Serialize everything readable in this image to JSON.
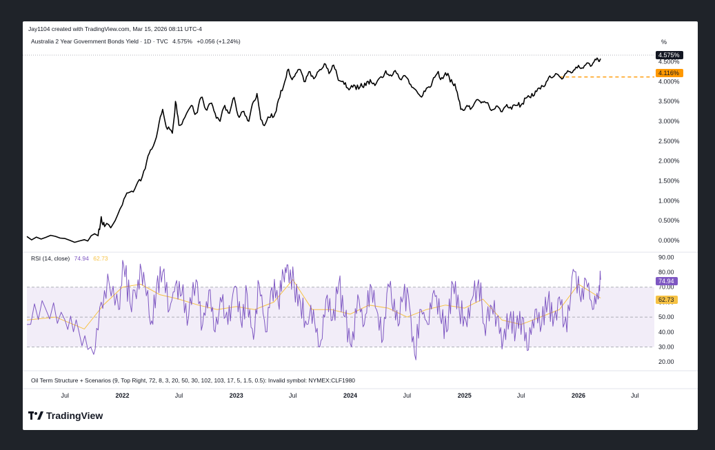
{
  "header": {
    "created_by": "Jay1104 created with TradingView.com, Mar 15, 2026 08:11 UTC-4",
    "symbol_line": "Australia 2 Year Government Bonds Yield · 1D · TVC",
    "last_value": "4.575%",
    "change": "+0.056 (+1.24%)",
    "unit_label": "%"
  },
  "price_badges": {
    "last": "4.575%",
    "reference": "4.116%"
  },
  "rsi_header": {
    "label": "RSI (14, close)",
    "rsi_value": "74.94",
    "ma_value": "62.73"
  },
  "rsi_badges": {
    "rsi": "74.94",
    "ma": "62.73"
  },
  "indicator_note": "Oil Term Structure + Scenarios (9, Top Right, 72, 8, 3, 20, 50, 30, 102, 103, 17, 5, 1.5, 0.5): Invalid symbol: NYMEX:CLF1980",
  "branding": {
    "logo_text": "TradingView"
  },
  "colors": {
    "price_line": "#000000",
    "rsi_line": "#7e57c2",
    "rsi_ma": "#f6c244",
    "ref_line": "#ff9800",
    "badge_dark": "#131722",
    "badge_orange": "#ff9800",
    "rsi_band": "#ede7f6"
  },
  "chart_data": [
    {
      "type": "line",
      "title": "Australia 2 Year Government Bonds Yield",
      "ylabel": "%",
      "ylim": [
        0,
        4.7
      ],
      "y_ticks": [
        "0.000%",
        "0.500%",
        "1.000%",
        "1.500%",
        "2.000%",
        "2.500%",
        "3.000%",
        "3.500%",
        "4.000%",
        "4.500%"
      ],
      "x_ticks": [
        "Jul",
        "2022",
        "Jul",
        "2023",
        "Jul",
        "2024",
        "Jul",
        "2025",
        "Jul",
        "2026",
        "Jul"
      ],
      "reference_line": 4.116,
      "series": [
        {
          "x": [
            "2021-03-01",
            "2021-05-01",
            "2021-07-01",
            "2021-09-01",
            "2021-10-15",
            "2021-10-25",
            "2021-11-05",
            "2021-12-01",
            "2022-01-01",
            "2022-01-20",
            "2022-02-10",
            "2022-03-01",
            "2022-03-20",
            "2022-04-05",
            "2022-04-25",
            "2022-05-10",
            "2022-05-25",
            "2022-06-10",
            "2022-06-20",
            "2022-07-01",
            "2022-07-20",
            "2022-08-10",
            "2022-08-25",
            "2022-09-10",
            "2022-09-25",
            "2022-10-10",
            "2022-10-25",
            "2022-11-10",
            "2022-11-25",
            "2022-12-10",
            "2022-12-25",
            "2023-01-10",
            "2023-01-25",
            "2023-02-10",
            "2023-02-25",
            "2023-03-08",
            "2023-03-20",
            "2023-04-05",
            "2023-04-20",
            "2023-05-05",
            "2023-05-20",
            "2023-06-05",
            "2023-06-15",
            "2023-06-25",
            "2023-07-10",
            "2023-07-25",
            "2023-08-10",
            "2023-08-25",
            "2023-09-10",
            "2023-09-25",
            "2023-10-10",
            "2023-10-25",
            "2023-11-05",
            "2023-11-20",
            "2023-12-05",
            "2023-12-20",
            "2024-01-05",
            "2024-01-20",
            "2024-02-05",
            "2024-02-20",
            "2024-03-05",
            "2024-03-20",
            "2024-04-05",
            "2024-04-20",
            "2024-05-05",
            "2024-05-20",
            "2024-06-05",
            "2024-06-20",
            "2024-07-05",
            "2024-07-20",
            "2024-08-05",
            "2024-08-20",
            "2024-09-05",
            "2024-09-20",
            "2024-10-05",
            "2024-10-20",
            "2024-11-05",
            "2024-11-20",
            "2024-12-05",
            "2024-12-20",
            "2025-01-05",
            "2025-01-20",
            "2025-02-05",
            "2025-02-20",
            "2025-03-05",
            "2025-03-20",
            "2025-04-05",
            "2025-04-20",
            "2025-05-05",
            "2025-05-20",
            "2025-06-05",
            "2025-06-20",
            "2025-07-05",
            "2025-07-20",
            "2025-08-05",
            "2025-08-20",
            "2025-09-05",
            "2025-09-20",
            "2025-10-05",
            "2025-10-20",
            "2025-11-05",
            "2025-11-20",
            "2025-12-05",
            "2025-12-20",
            "2026-01-05",
            "2026-01-20",
            "2026-02-05",
            "2026-02-20",
            "2026-03-05",
            "2026-03-13"
          ],
          "values": [
            0.1,
            0.08,
            0.05,
            0.02,
            0.12,
            0.6,
            0.35,
            0.4,
            0.9,
            1.2,
            1.3,
            1.5,
            2.0,
            2.3,
            2.8,
            3.3,
            2.8,
            2.7,
            3.5,
            2.9,
            3.1,
            3.4,
            3.2,
            3.6,
            3.3,
            3.45,
            3.2,
            3.0,
            3.4,
            3.2,
            3.6,
            3.1,
            3.25,
            3.0,
            3.5,
            3.7,
            3.05,
            2.95,
            3.1,
            3.2,
            3.6,
            4.0,
            4.3,
            4.1,
            4.2,
            4.3,
            4.0,
            4.25,
            4.1,
            4.3,
            4.45,
            4.2,
            4.4,
            4.15,
            4.0,
            3.85,
            3.9,
            3.8,
            3.95,
            3.9,
            4.05,
            3.9,
            4.1,
            4.2,
            4.15,
            4.25,
            4.1,
            4.15,
            4.05,
            3.85,
            3.7,
            3.65,
            3.85,
            4.0,
            4.2,
            4.1,
            4.15,
            4.05,
            3.8,
            3.3,
            3.35,
            3.3,
            3.5,
            3.5,
            3.5,
            3.4,
            3.3,
            3.35,
            3.3,
            3.35,
            3.4,
            3.4,
            3.45,
            3.6,
            3.7,
            3.75,
            3.9,
            4.0,
            4.1,
            4.2,
            4.1,
            4.2,
            4.25,
            4.3,
            4.35,
            4.4,
            4.45,
            4.5,
            4.55,
            4.575
          ]
        }
      ]
    },
    {
      "type": "line",
      "title": "RSI (14, close)",
      "ylim": [
        15,
        92
      ],
      "y_ticks": [
        "20.00",
        "30.00",
        "40.00",
        "50.00",
        "60.00",
        "70.00",
        "80.00",
        "90.00"
      ],
      "bands": [
        30,
        50,
        70
      ],
      "series": [
        {
          "name": "RSI",
          "x": [
            "2021-03-01",
            "2021-05-01",
            "2021-07-01",
            "2021-08-15",
            "2021-10-01",
            "2021-10-25",
            "2021-11-20",
            "2021-12-20",
            "2022-01-05",
            "2022-01-25",
            "2022-02-20",
            "2022-03-10",
            "2022-04-01",
            "2022-04-20",
            "2022-05-10",
            "2022-06-01",
            "2022-06-20",
            "2022-07-10",
            "2022-08-01",
            "2022-08-25",
            "2022-09-15",
            "2022-10-05",
            "2022-10-25",
            "2022-11-15",
            "2022-12-05",
            "2022-12-25",
            "2023-01-15",
            "2023-02-05",
            "2023-02-25",
            "2023-03-15",
            "2023-04-05",
            "2023-04-25",
            "2023-05-15",
            "2023-06-01",
            "2023-06-15",
            "2023-07-05",
            "2023-07-25",
            "2023-08-15",
            "2023-09-05",
            "2023-09-25",
            "2023-10-15",
            "2023-11-05",
            "2023-11-25",
            "2023-12-15",
            "2024-01-05",
            "2024-01-25",
            "2024-02-15",
            "2024-03-05",
            "2024-03-25",
            "2024-04-15",
            "2024-05-05",
            "2024-05-25",
            "2024-06-15",
            "2024-07-05",
            "2024-07-25",
            "2024-08-15",
            "2024-09-05",
            "2024-09-25",
            "2024-10-15",
            "2024-11-05",
            "2024-11-25",
            "2024-12-15",
            "2025-01-05",
            "2025-01-25",
            "2025-02-15",
            "2025-03-05",
            "2025-03-25",
            "2025-04-15",
            "2025-05-05",
            "2025-05-25",
            "2025-06-15",
            "2025-07-05",
            "2025-07-25",
            "2025-08-15",
            "2025-09-05",
            "2025-09-25",
            "2025-10-15",
            "2025-11-05",
            "2025-11-25",
            "2025-12-15",
            "2026-01-05",
            "2026-01-25",
            "2026-02-15",
            "2026-03-05",
            "2026-03-13"
          ],
          "values": [
            45,
            55,
            48,
            40,
            25,
            60,
            72,
            55,
            85,
            60,
            75,
            80,
            45,
            70,
            80,
            55,
            72,
            65,
            50,
            75,
            45,
            68,
            40,
            60,
            45,
            70,
            48,
            65,
            35,
            72,
            40,
            70,
            60,
            78,
            85,
            72,
            60,
            45,
            55,
            30,
            62,
            48,
            72,
            50,
            30,
            65,
            45,
            72,
            55,
            35,
            70,
            48,
            60,
            65,
            25,
            55,
            45,
            68,
            50,
            40,
            72,
            55,
            48,
            62,
            75,
            45,
            58,
            50,
            35,
            48,
            42,
            50,
            28,
            55,
            45,
            60,
            50,
            58,
            40,
            82,
            65,
            75,
            55,
            62,
            74.94
          ]
        },
        {
          "name": "RSI-based MA",
          "x": [
            "2021-03-01",
            "2021-06-01",
            "2021-09-01",
            "2021-11-01",
            "2022-01-01",
            "2022-03-01",
            "2022-05-01",
            "2022-07-01",
            "2022-09-01",
            "2022-11-01",
            "2023-01-01",
            "2023-03-01",
            "2023-05-01",
            "2023-07-01",
            "2023-09-01",
            "2023-11-01",
            "2024-01-01",
            "2024-03-01",
            "2024-05-01",
            "2024-07-01",
            "2024-09-01",
            "2024-11-01",
            "2025-01-01",
            "2025-03-01",
            "2025-05-01",
            "2025-07-01",
            "2025-09-01",
            "2025-11-01",
            "2026-01-01",
            "2026-03-13"
          ],
          "values": [
            48,
            50,
            42,
            58,
            70,
            72,
            65,
            62,
            58,
            55,
            57,
            55,
            60,
            75,
            55,
            55,
            52,
            58,
            56,
            50,
            55,
            58,
            56,
            62,
            48,
            45,
            50,
            55,
            72,
            62.73
          ]
        }
      ]
    }
  ]
}
